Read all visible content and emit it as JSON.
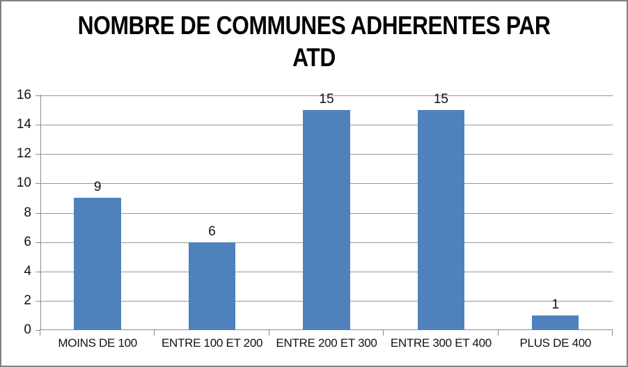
{
  "frame": {
    "background": "#FFFFFF",
    "border_color": "#808080"
  },
  "title": {
    "line1": "NOMBRE DE COMMUNES ADHERENTES PAR",
    "line2": "ATD"
  },
  "chart_data": {
    "type": "bar",
    "title": "NOMBRE DE COMMUNES ADHERENTES PAR ATD",
    "categories": [
      "MOINS DE 100",
      "ENTRE 100 ET 200",
      "ENTRE 200 ET 300",
      "ENTRE 300 ET 400",
      "PLUS DE 400"
    ],
    "values": [
      9,
      6,
      15,
      15,
      1
    ],
    "data_labels": [
      "9",
      "6",
      "15",
      "15",
      "1"
    ],
    "xlabel": "",
    "ylabel": "",
    "ylim": [
      0,
      16
    ],
    "yticks": [
      0,
      2,
      4,
      6,
      8,
      10,
      12,
      14,
      16
    ],
    "grid": true,
    "legend": "none",
    "bar_color": "#4F81BD",
    "gridline_color": "#969696",
    "axis_color": "#8A8A8A",
    "label_color": "#111111"
  }
}
